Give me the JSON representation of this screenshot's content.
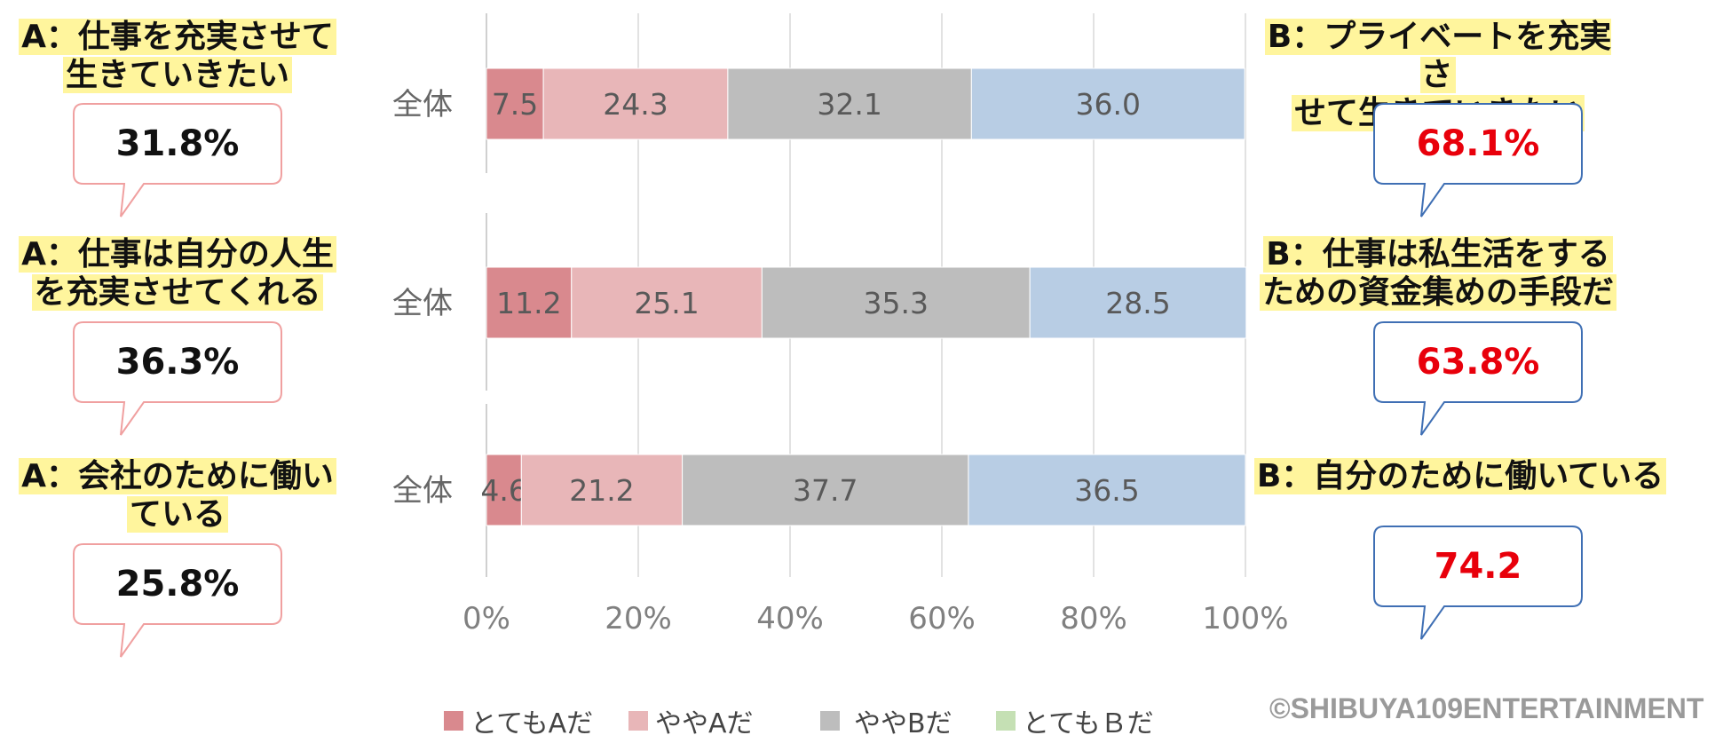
{
  "colors": {
    "very_a": "#d9898e",
    "some_a": "#e8b6b8",
    "some_b": "#bdbdbd",
    "very_b": "#b8cde4",
    "legend_very_b": "#c5e0b4",
    "bubble_a_border": "#f0a0a0",
    "bubble_b_border": "#3f6fb4",
    "highlight": "#fff59d"
  },
  "left_items": [
    {
      "line1": "A：仕事を充実させて",
      "line2": "生きていきたい",
      "value": "31.8%"
    },
    {
      "line1": "A：仕事は自分の人生",
      "line2": "を充実させてくれる",
      "value": "36.3%"
    },
    {
      "line1": "A：会社のために働い",
      "line2": "ている",
      "value": "25.8%"
    }
  ],
  "right_items": [
    {
      "line1": "B：プライベートを充実さ",
      "line2": "せて生きていきたい",
      "value": "68.1%"
    },
    {
      "line1": "B：仕事は私生活をする",
      "line2": "ための資金集めの手段だ",
      "value": "63.8%"
    },
    {
      "line1": "B：自分のために働いている",
      "line2": "",
      "value": "74.2"
    }
  ],
  "chart_data": {
    "type": "bar",
    "orientation": "horizontal",
    "stacked": true,
    "categories": [
      "全体",
      "全体",
      "全体"
    ],
    "series": [
      {
        "name": "とてもAだ",
        "values": [
          7.5,
          11.2,
          4.6
        ]
      },
      {
        "name": "ややAだ",
        "values": [
          24.3,
          25.1,
          21.2
        ]
      },
      {
        "name": "ややBだ",
        "values": [
          32.1,
          35.3,
          37.7
        ]
      },
      {
        "name": "とてもＢだ",
        "values": [
          36.0,
          28.5,
          36.5
        ]
      }
    ],
    "xlim": [
      0,
      100
    ],
    "xticks": [
      "0%",
      "20%",
      "40%",
      "60%",
      "80%",
      "100%"
    ],
    "grid": true,
    "legend": "bottom"
  },
  "legend_labels": [
    "とてもAだ",
    "ややAだ",
    "ややBだ",
    "とてもＢだ"
  ],
  "credit": "©SHIBUYA109ENTERTAINMENT"
}
